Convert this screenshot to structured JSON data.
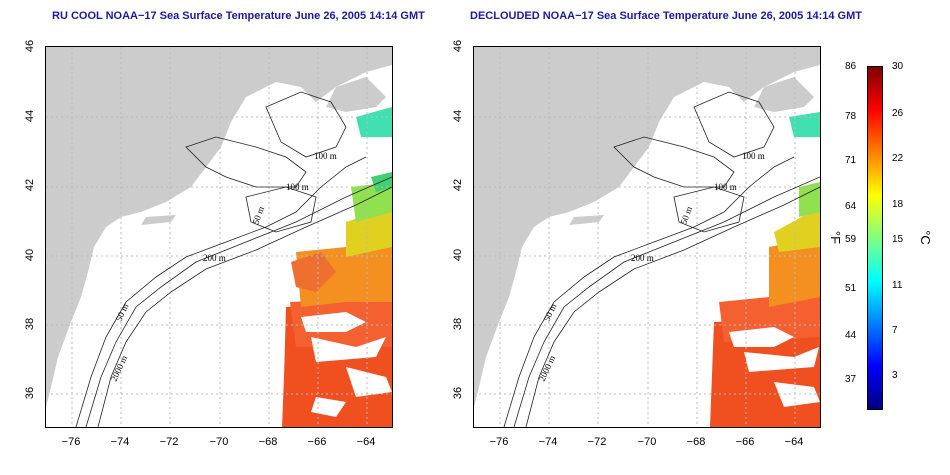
{
  "left_title": "RU COOL NOAA−17 Sea Surface Temperature June 26, 2005 14:14 GMT",
  "right_title": "DECLOUDED NOAA−17 Sea Surface Temperature June 26, 2005 14:14 GMT",
  "lat_ticks": [
    "46",
    "44",
    "42",
    "40",
    "38",
    "36"
  ],
  "lon_ticks": [
    "−76",
    "−74",
    "−72",
    "−70",
    "−68",
    "−66",
    "−64"
  ],
  "contours": [
    "100 m",
    "100 m",
    "50 m",
    "200 m",
    "50 m",
    "2000 m"
  ],
  "colorbar": {
    "fahrenheit": [
      "86",
      "78",
      "71",
      "64",
      "59",
      "51",
      "44",
      "37"
    ],
    "celsius": [
      "30",
      "26",
      "22",
      "18",
      "15",
      "11",
      "7",
      "3"
    ],
    "unit_f": "°F",
    "unit_c": "°C",
    "colors": [
      "#000080",
      "#0000ff",
      "#0080ff",
      "#00ffff",
      "#80ff80",
      "#ffff00",
      "#ff8000",
      "#ff0000",
      "#800000"
    ]
  }
}
